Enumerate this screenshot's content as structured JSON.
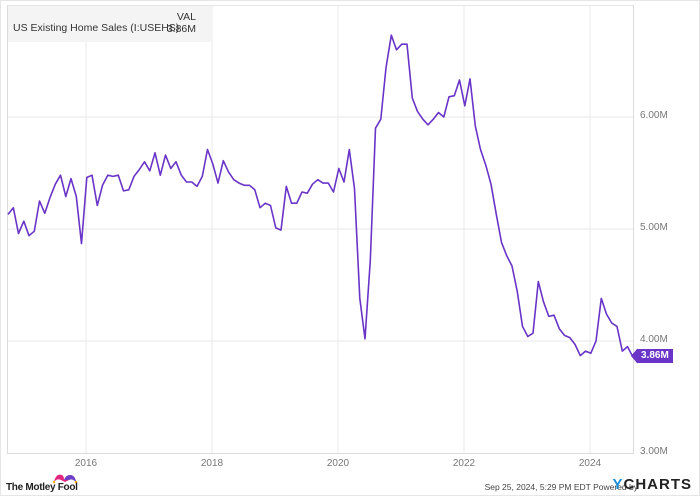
{
  "legend": {
    "series_name": "US Existing Home Sales (I:USEHS)",
    "value_header": "VAL",
    "value": "3.86M"
  },
  "end_label": "3.86M",
  "footer": {
    "timestamp": "Sep 25, 2024, 5:29 PM EDT",
    "powered_by": "Powered by",
    "brand_y": "Y",
    "brand_rest": "CHARTS",
    "logo_text": "The Motley Fool"
  },
  "colors": {
    "line": "#6934c7",
    "grid": "#e8e8e8",
    "label_bg": "#6934c7"
  },
  "chart_data": {
    "type": "line",
    "title": "US Existing Home Sales (I:USEHS)",
    "xlabel": "",
    "ylabel": "",
    "ylim": [
      3.0,
      7.0
    ],
    "y_ticks": [
      "3.00M",
      "4.00M",
      "5.00M",
      "6.00M"
    ],
    "x_ticks": [
      "2016",
      "2018",
      "2020",
      "2022",
      "2024"
    ],
    "grid": true,
    "legend_position": "top-left",
    "last_value": "3.86M",
    "x_start": "2014-11",
    "x_end": "2024-08",
    "frequency": "monthly",
    "series": [
      {
        "name": "US Existing Home Sales",
        "unit": "M",
        "values": [
          5.13,
          5.19,
          4.96,
          5.07,
          4.94,
          4.98,
          5.25,
          5.14,
          5.28,
          5.4,
          5.48,
          5.29,
          5.45,
          5.29,
          4.87,
          5.46,
          5.48,
          5.21,
          5.39,
          5.48,
          5.47,
          5.48,
          5.34,
          5.35,
          5.47,
          5.53,
          5.6,
          5.52,
          5.68,
          5.48,
          5.66,
          5.54,
          5.6,
          5.48,
          5.42,
          5.42,
          5.38,
          5.47,
          5.71,
          5.58,
          5.41,
          5.61,
          5.51,
          5.44,
          5.41,
          5.39,
          5.39,
          5.35,
          5.19,
          5.23,
          5.21,
          5.01,
          4.99,
          5.38,
          5.23,
          5.23,
          5.33,
          5.32,
          5.4,
          5.44,
          5.41,
          5.41,
          5.33,
          5.54,
          5.42,
          5.71,
          5.36,
          4.38,
          4.02,
          4.72,
          5.9,
          5.98,
          6.44,
          6.73,
          6.6,
          6.65,
          6.65,
          6.17,
          6.05,
          5.98,
          5.93,
          5.98,
          6.04,
          6.0,
          6.18,
          6.19,
          6.33,
          6.1,
          6.34,
          5.92,
          5.71,
          5.57,
          5.4,
          5.13,
          4.88,
          4.76,
          4.67,
          4.44,
          4.13,
          4.04,
          4.07,
          4.53,
          4.35,
          4.22,
          4.23,
          4.11,
          4.05,
          4.03,
          3.97,
          3.87,
          3.91,
          3.89,
          4.0,
          4.38,
          4.24,
          4.16,
          4.13,
          3.91,
          3.95,
          3.86
        ]
      }
    ]
  }
}
